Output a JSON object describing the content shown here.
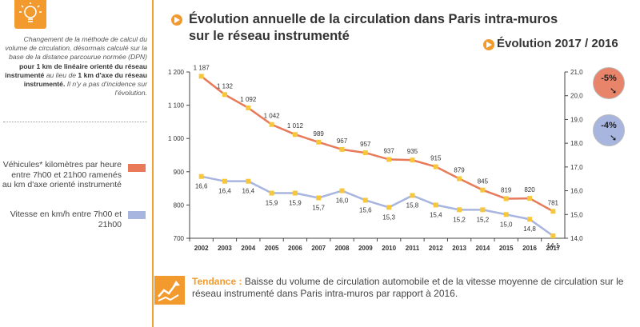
{
  "note": {
    "part1": "Changement de la méthode de calcul du volume de circulation, désormais calculé sur la base de la distance parcourue normée (DPN)",
    "bold1": "pour 1 km de linéaire orienté du réseau instrumenté",
    "part2": "au lieu de",
    "bold2": "1 km d'axe du réseau instrumenté.",
    "part3": "Il n'y a pas d'incidence sur l'évolution."
  },
  "legend": {
    "series1": "Véhicules* kilomètres par heure entre 7h00 et 21h00 ramenés au km d'axe orienté instrumenté",
    "series2": "Vitesse en km/h entre 7h00 et 21h00"
  },
  "title": {
    "line1": "Évolution annuelle de la circulation dans Paris intra-muros",
    "line2": "sur le réseau instrumenté"
  },
  "evolution": {
    "label": "Évolution 2017 / 2016",
    "traffic": "-5%",
    "speed": "-4%"
  },
  "trend": {
    "label": "Tendance :",
    "text": "Baisse du volume de circulation automobile et de la vitesse moyenne de circulation sur le réseau instrumenté dans Paris intra-muros par rapport à 2016."
  },
  "colors": {
    "orange": "#f29a2e",
    "traffic_line": "#e87a5a",
    "speed_line": "#a7b5df",
    "marker": "#f6c73a"
  },
  "chart_data": {
    "type": "line",
    "categories": [
      "2002",
      "2003",
      "2004",
      "2005",
      "2006",
      "2007",
      "2008",
      "2009",
      "2010",
      "2011",
      "2012",
      "2013",
      "2014",
      "2015",
      "2016",
      "2017"
    ],
    "series": [
      {
        "name": "Véhicules* kilomètres par heure entre 7h00 et 21h00 ramenés au km d'axe orienté instrumenté",
        "axis": "left",
        "values": [
          1187,
          1132,
          1092,
          1042,
          1012,
          989,
          967,
          957,
          937,
          935,
          915,
          879,
          845,
          819,
          820,
          781
        ],
        "labels": [
          "1 187",
          "1 132",
          "1 092",
          "1 042",
          "1 012",
          "989",
          "967",
          "957",
          "937",
          "935",
          "915",
          "879",
          "845",
          "819",
          "820",
          "781"
        ]
      },
      {
        "name": "Vitesse en km/h entre 7h00 et 21h00",
        "axis": "right",
        "values": [
          16.6,
          16.4,
          16.4,
          15.9,
          15.9,
          15.7,
          16.0,
          15.6,
          15.3,
          15.8,
          15.4,
          15.2,
          15.2,
          15.0,
          14.8,
          14.1
        ],
        "labels": [
          "16,6",
          "16,4",
          "16,4",
          "15,9",
          "15,9",
          "15,7",
          "16,0",
          "15,6",
          "15,3",
          "15,8",
          "15,4",
          "15,2",
          "15,2",
          "15,0",
          "14,8",
          "14,1"
        ]
      }
    ],
    "y_left": {
      "range": [
        700,
        1200
      ],
      "ticks": [
        700,
        800,
        900,
        1000,
        1100,
        1200
      ],
      "tick_labels": [
        "700",
        "800",
        "900",
        "1 000",
        "1 100",
        "1 200"
      ]
    },
    "y_right": {
      "range": [
        14.0,
        21.0
      ],
      "ticks": [
        14,
        15,
        16,
        17,
        18,
        19,
        20,
        21
      ],
      "tick_labels": [
        "14,0",
        "15,0",
        "16,0",
        "17,0",
        "18,0",
        "19,0",
        "20,0",
        "21,0"
      ]
    },
    "grid": false
  }
}
